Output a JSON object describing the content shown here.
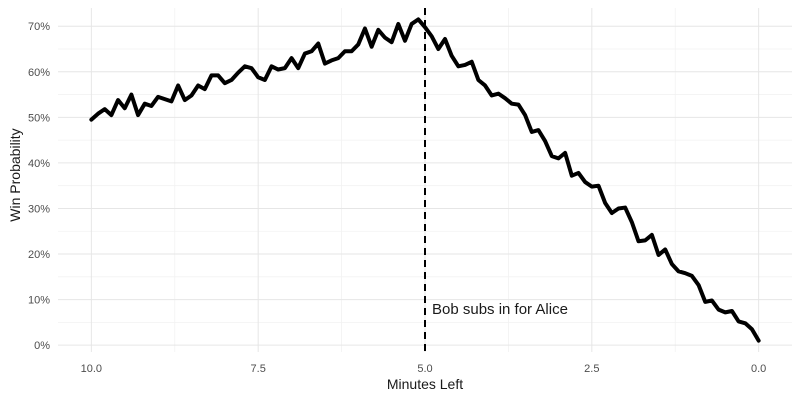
{
  "chart_data": {
    "type": "line",
    "xlabel": "Minutes Left",
    "ylabel": "Win Probability",
    "x_reversed": true,
    "xlim": [
      -0.5,
      10.5
    ],
    "ylim": [
      -0.015,
      0.74
    ],
    "x_ticks": [
      {
        "value": 10,
        "label": "10.0"
      },
      {
        "value": 7.5,
        "label": "7.5"
      },
      {
        "value": 5,
        "label": "5.0"
      },
      {
        "value": 2.5,
        "label": "2.5"
      },
      {
        "value": 0,
        "label": "0.0"
      }
    ],
    "y_ticks": [
      {
        "value": 0.0,
        "label": "0%"
      },
      {
        "value": 0.1,
        "label": "10%"
      },
      {
        "value": 0.2,
        "label": "20%"
      },
      {
        "value": 0.3,
        "label": "30%"
      },
      {
        "value": 0.4,
        "label": "40%"
      },
      {
        "value": 0.5,
        "label": "50%"
      },
      {
        "value": 0.6,
        "label": "60%"
      },
      {
        "value": 0.7,
        "label": "70%"
      }
    ],
    "grid": true,
    "annotation": {
      "x": 5,
      "text": "Bob subs in for Alice",
      "style": "dashed-vertical-line"
    },
    "series": [
      {
        "color": "#000000",
        "x": [
          10.0,
          9.9,
          9.8,
          9.7,
          9.6,
          9.5,
          9.4,
          9.3,
          9.2,
          9.1,
          9.0,
          8.9,
          8.8,
          8.7,
          8.6,
          8.5,
          8.4,
          8.3,
          8.2,
          8.1,
          8.0,
          7.9,
          7.8,
          7.7,
          7.6,
          7.5,
          7.4,
          7.3,
          7.2,
          7.1,
          7.0,
          6.9,
          6.8,
          6.7,
          6.6,
          6.5,
          6.4,
          6.3,
          6.2,
          6.1,
          6.0,
          5.9,
          5.8,
          5.7,
          5.6,
          5.5,
          5.4,
          5.3,
          5.2,
          5.1,
          5.0,
          4.9,
          4.8,
          4.7,
          4.6,
          4.5,
          4.4,
          4.3,
          4.2,
          4.1,
          4.0,
          3.9,
          3.8,
          3.7,
          3.6,
          3.5,
          3.4,
          3.3,
          3.2,
          3.1,
          3.0,
          2.9,
          2.8,
          2.7,
          2.6,
          2.5,
          2.4,
          2.3,
          2.2,
          2.1,
          2.0,
          1.9,
          1.8,
          1.7,
          1.6,
          1.5,
          1.4,
          1.3,
          1.2,
          1.1,
          1.0,
          0.9,
          0.8,
          0.7,
          0.6,
          0.5,
          0.4,
          0.3,
          0.2,
          0.1,
          0.0
        ],
        "y": [
          0.495,
          0.508,
          0.518,
          0.505,
          0.538,
          0.52,
          0.55,
          0.505,
          0.53,
          0.525,
          0.545,
          0.54,
          0.535,
          0.57,
          0.538,
          0.548,
          0.57,
          0.562,
          0.592,
          0.592,
          0.575,
          0.582,
          0.598,
          0.612,
          0.608,
          0.588,
          0.582,
          0.612,
          0.605,
          0.608,
          0.63,
          0.608,
          0.64,
          0.645,
          0.662,
          0.618,
          0.625,
          0.63,
          0.645,
          0.645,
          0.66,
          0.695,
          0.655,
          0.692,
          0.675,
          0.665,
          0.705,
          0.668,
          0.705,
          0.715,
          0.698,
          0.678,
          0.65,
          0.672,
          0.635,
          0.612,
          0.615,
          0.622,
          0.582,
          0.57,
          0.548,
          0.552,
          0.542,
          0.53,
          0.528,
          0.505,
          0.468,
          0.472,
          0.448,
          0.415,
          0.41,
          0.422,
          0.372,
          0.378,
          0.358,
          0.348,
          0.35,
          0.312,
          0.29,
          0.3,
          0.302,
          0.27,
          0.228,
          0.23,
          0.242,
          0.198,
          0.21,
          0.178,
          0.162,
          0.158,
          0.152,
          0.132,
          0.095,
          0.098,
          0.078,
          0.072,
          0.075,
          0.052,
          0.048,
          0.035,
          0.01
        ]
      }
    ]
  }
}
